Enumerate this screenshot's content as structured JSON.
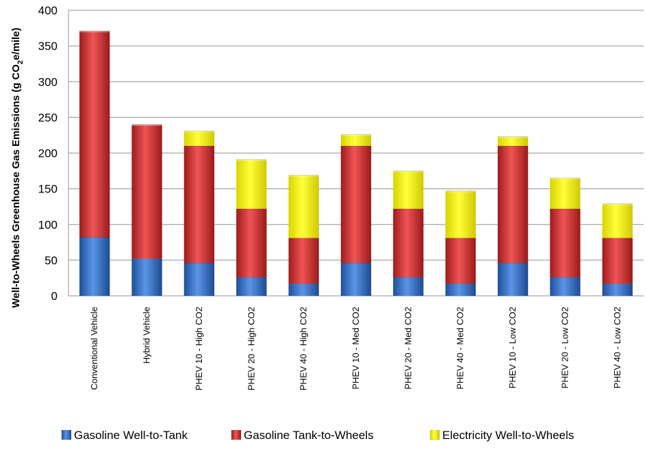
{
  "chart_data": {
    "type": "bar",
    "stacked": true,
    "title": "",
    "xlabel": "",
    "ylabel": {
      "main": "Well-to-Wheels Greenhouse Gas Emissions (g CO",
      "sub": "2",
      "rest": "e/mile)"
    },
    "ylim": [
      0,
      400
    ],
    "yticks": [
      0,
      50,
      100,
      150,
      200,
      250,
      300,
      350,
      400
    ],
    "grid": true,
    "legend_position": "bottom",
    "categories": [
      "Conventional Vehicle",
      "Hybrid Vehicle",
      "PHEV 10 - High CO2",
      "PHEV 20 - High CO2",
      "PHEV 40 - High CO2",
      "PHEV 10 - Med CO2",
      "PHEV 20 - Med CO2",
      "PHEV 40 - Med CO2",
      "PHEV 10 - Low CO2",
      "PHEV 20 - Low CO2",
      "PHEV 40 - Low CO2"
    ],
    "series": [
      {
        "name": "Gasoline Well-to-Tank",
        "color": "#2f6ec6",
        "values": [
          82,
          52,
          46,
          26,
          17,
          46,
          26,
          17,
          46,
          26,
          17
        ]
      },
      {
        "name": "Gasoline Tank-to-Wheels",
        "color": "#cc2d2d",
        "values": [
          289,
          188,
          164,
          96,
          64,
          164,
          96,
          64,
          164,
          96,
          64
        ]
      },
      {
        "name": "Electricity Well-to-Wheels",
        "color": "#f5f000",
        "values": [
          0,
          0,
          21,
          69,
          88,
          16,
          53,
          66,
          13,
          43,
          48
        ]
      }
    ]
  }
}
